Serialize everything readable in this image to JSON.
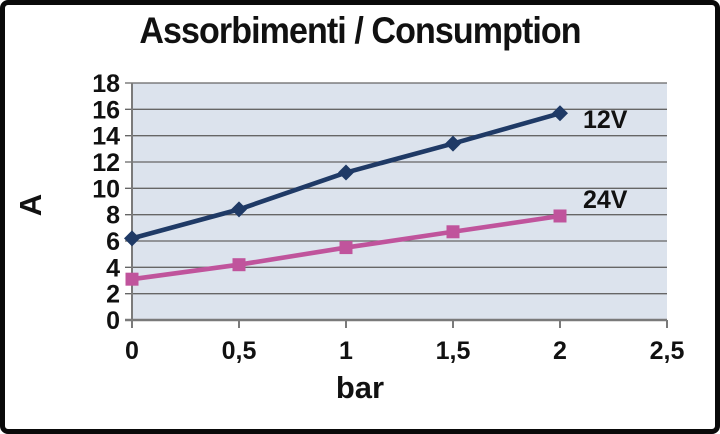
{
  "chart_data": {
    "type": "line",
    "title": "Assorbimenti / Consumption",
    "xlabel": "bar",
    "ylabel": "A",
    "x": [
      0,
      0.5,
      1,
      1.5,
      2
    ],
    "series": [
      {
        "name": "12V",
        "color": "#1f3a66",
        "marker": "diamond",
        "values": [
          6.2,
          8.4,
          11.2,
          13.4,
          15.7
        ]
      },
      {
        "name": "24V",
        "color": "#c0549c",
        "marker": "square",
        "values": [
          3.1,
          4.2,
          5.5,
          6.7,
          7.9
        ]
      }
    ],
    "xlim": [
      0,
      2.5
    ],
    "ylim": [
      0,
      18
    ],
    "x_ticks": [
      0,
      0.5,
      1,
      1.5,
      2,
      2.5
    ],
    "x_tick_labels": [
      "0",
      "0,5",
      "1",
      "1,5",
      "2",
      "2,5"
    ],
    "y_ticks": [
      0,
      2,
      4,
      6,
      8,
      10,
      12,
      14,
      16,
      18
    ],
    "y_tick_labels": [
      "0",
      "2",
      "4",
      "6",
      "8",
      "10",
      "12",
      "14",
      "16",
      "18"
    ],
    "grid": "horizontal",
    "legend_position": "end-of-line",
    "colors": {
      "plot_bg": "#dce3ed",
      "grid": "#666666",
      "axis": "#7a7a7a",
      "text": "#111111",
      "frame_border": "#0a0a0a"
    }
  }
}
